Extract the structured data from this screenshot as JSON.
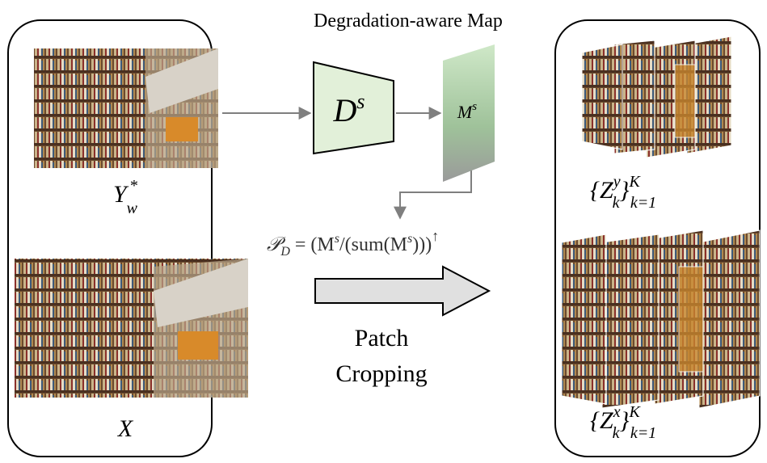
{
  "title": "Degradation-aware Map",
  "encoder": {
    "base": "D",
    "sup": "s"
  },
  "map": {
    "base": "M",
    "sup": "s"
  },
  "inputs": [
    {
      "base": "Y",
      "sub": "w",
      "sup": "*"
    },
    {
      "base": "X"
    }
  ],
  "formula": [
    "𝒫",
    "D",
    " = (M",
    "s",
    "/(sum(M",
    "s",
    ")))",
    "↑"
  ],
  "action": [
    "Patch",
    "Cropping"
  ],
  "outputs": [
    {
      "open": "{Z",
      "sup": "y",
      "sub": "k",
      "close": "}",
      "range_sup": "K",
      "range_sub": "k=1"
    },
    {
      "open": "{Z",
      "sup": "x",
      "sub": "k",
      "close": "}",
      "range_sup": "K",
      "range_sub": "k=1"
    }
  ]
}
